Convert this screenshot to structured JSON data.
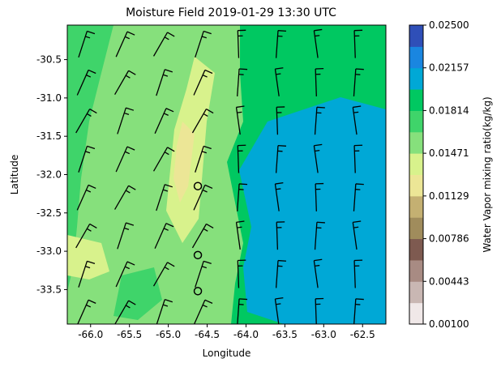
{
  "chart_data": {
    "type": "heatmap",
    "title": "Moisture Field 2019-01-29 13:30 UTC",
    "xlabel": "Longitude",
    "ylabel": "Latitude",
    "xlim": [
      -66.3,
      -62.2
    ],
    "ylim": [
      -33.95,
      -30.05
    ],
    "x_ticks": [
      "-66.0",
      "-65.5",
      "-65.0",
      "-64.5",
      "-64.0",
      "-63.5",
      "-63.0",
      "-62.5"
    ],
    "x_tick_values": [
      -66.0,
      -65.5,
      -65.0,
      -64.5,
      -64.0,
      -63.5,
      -63.0,
      -62.5
    ],
    "y_ticks": [
      "-30.5",
      "-31.0",
      "-31.5",
      "-32.0",
      "-32.5",
      "-33.0",
      "-33.5"
    ],
    "y_tick_values": [
      -30.5,
      -31.0,
      -31.5,
      -32.0,
      -32.5,
      -33.0,
      -33.5
    ],
    "colorbar": {
      "label": "Water Vapor mixing ratio(kg/kg)",
      "tick_labels": [
        "0.00100",
        "0.00443",
        "0.00786",
        "0.01129",
        "0.01471",
        "0.01814",
        "0.02157",
        "0.02500"
      ],
      "levels": [
        0.001,
        0.00271,
        0.00443,
        0.00614,
        0.00786,
        0.00957,
        0.01129,
        0.013,
        0.01471,
        0.01643,
        0.01814,
        0.01986,
        0.02157,
        0.02329,
        0.025
      ],
      "colors": [
        "#f0e8e8",
        "#c9b7b3",
        "#a88b83",
        "#7e5a50",
        "#a08c5c",
        "#c4b072",
        "#ece696",
        "#d8f28c",
        "#86e07c",
        "#3fd46a",
        "#00c861",
        "#00a8d6",
        "#1a86e0",
        "#2f4fb8"
      ]
    },
    "fields": {
      "left_region_value": 0.0155,
      "moist_core_value": 0.0165,
      "ridge_value": 0.0135,
      "ridge_core_value": 0.0125,
      "east_region_value": 0.019,
      "blue_region_value": 0.0205,
      "patch_values": [
        0.0175,
        0.013
      ]
    },
    "circles": [
      {
        "lon": -64.62,
        "lat": -32.15
      },
      {
        "lon": -64.62,
        "lat": -33.05
      },
      {
        "lon": -64.62,
        "lat": -33.52
      }
    ],
    "wind_barbs": {
      "lons": [
        -66.1,
        -65.6,
        -65.1,
        -64.6,
        -64.1,
        -63.6,
        -63.1,
        -62.6
      ],
      "lats": [
        -30.3,
        -30.8,
        -31.3,
        -31.8,
        -32.3,
        -32.8,
        -33.3,
        -33.8
      ],
      "barb_count": 2
    }
  }
}
